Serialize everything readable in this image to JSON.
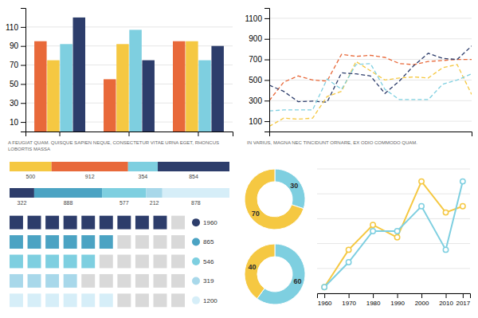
{
  "chart_data": [
    {
      "type": "bar",
      "subtitle": "A FEUGIAT QUAM. QUISQUE SAPIEN NEQUE, CONSECTETUR VITAE URNA EGET, RHONCUS\nLOBORTIS MASSA",
      "categories": [
        null,
        null,
        null
      ],
      "series": [
        {
          "color": "#E8693A",
          "values": [
            95,
            55,
            95
          ]
        },
        {
          "color": "#F5C842",
          "values": [
            75,
            92,
            95
          ]
        },
        {
          "color": "#7ECFE0",
          "values": [
            92,
            107,
            75
          ]
        },
        {
          "color": "#2D3D6B",
          "values": [
            120,
            75,
            90
          ]
        }
      ],
      "ylim": [
        0,
        130
      ],
      "yticks": [
        10,
        30,
        50,
        70,
        90,
        110
      ],
      "grid": true,
      "tick_labels": "y"
    },
    {
      "type": "line",
      "subtitle": "IN VARIUS, MAGNA NEC TINCIDUNT ORNARE, EX ODIO COMMODO QUAM.",
      "x": [
        0,
        1,
        2,
        3,
        4,
        5,
        6,
        7,
        8,
        9,
        10,
        11,
        12,
        13,
        14
      ],
      "series": [
        {
          "color": "#E8693A",
          "line_style": "dashed",
          "values": [
            300,
            480,
            540,
            500,
            490,
            750,
            730,
            740,
            720,
            660,
            650,
            680,
            690,
            700,
            700
          ]
        },
        {
          "color": "#2D3D6B",
          "line_style": "dashed",
          "values": [
            450,
            390,
            290,
            295,
            285,
            570,
            560,
            540,
            370,
            490,
            640,
            760,
            710,
            700,
            830
          ]
        },
        {
          "color": "#F5C842",
          "line_style": "dashed",
          "values": [
            50,
            130,
            120,
            130,
            340,
            390,
            680,
            590,
            500,
            520,
            530,
            520,
            620,
            650,
            360
          ]
        },
        {
          "color": "#7ECFE0",
          "line_style": "dashed",
          "values": [
            200,
            210,
            210,
            210,
            510,
            410,
            650,
            660,
            410,
            310,
            310,
            310,
            460,
            500,
            560
          ]
        }
      ],
      "xlim": [
        0,
        14
      ],
      "xticks": [],
      "ylim": [
        0,
        1200
      ],
      "yticks": [
        100,
        300,
        500,
        700,
        900,
        1100
      ],
      "grid": true,
      "tick_labels": "y"
    },
    {
      "type": "bar",
      "orientation": "horizontal",
      "stacked": true,
      "data_labels": true,
      "tick_labels": false,
      "series": [
        {
          "color": "#F5C842",
          "values": [
            500
          ]
        },
        {
          "color": "#E8693A",
          "values": [
            912
          ]
        },
        {
          "color": "#7ECFE0",
          "values": [
            354
          ]
        },
        {
          "color": "#2D3D6B",
          "values": [
            854
          ]
        }
      ],
      "xlim": [
        0,
        2620
      ]
    },
    {
      "type": "bar",
      "orientation": "horizontal",
      "stacked": true,
      "data_labels": true,
      "tick_labels": false,
      "series": [
        {
          "color": "#2D3D6B",
          "values": [
            322
          ]
        },
        {
          "color": "#4BA3C3",
          "values": [
            888
          ]
        },
        {
          "color": "#7ECFE0",
          "values": [
            577
          ]
        },
        {
          "color": "#A8D8EA",
          "values": [
            212
          ]
        },
        {
          "color": "#D6EEF8",
          "values": [
            878
          ]
        }
      ],
      "xlim": [
        0,
        2877
      ]
    },
    {
      "type": "waffle",
      "legend": "right",
      "xlim": [
        0,
        10
      ],
      "series": [
        {
          "name": "1960",
          "color": "#2D3D6B",
          "values": [
            9
          ]
        },
        {
          "name": "865",
          "color": "#4BA3C3",
          "values": [
            6
          ]
        },
        {
          "name": "546",
          "color": "#7ECFE0",
          "values": [
            5
          ]
        },
        {
          "name": "319",
          "color": "#A8D8EA",
          "values": [
            4
          ]
        },
        {
          "name": "1200",
          "color": "#D6EEF8",
          "values": [
            6
          ]
        }
      ]
    },
    {
      "type": "donut",
      "values": [
        30,
        70
      ],
      "colors": [
        "#7ECFE0",
        "#F5C842"
      ],
      "data_labels": true
    },
    {
      "type": "donut",
      "values": [
        60,
        40
      ],
      "colors": [
        "#7ECFE0",
        "#F5C842"
      ],
      "data_labels": true
    },
    {
      "type": "line",
      "marker": "circle",
      "x": [
        1960,
        1970,
        1980,
        1990,
        2000,
        2010,
        2017
      ],
      "series": [
        {
          "color": "#F5C842",
          "values": [
            5,
            35,
            55,
            45,
            90,
            65,
            70
          ]
        },
        {
          "color": "#7ECFE0",
          "values": [
            5,
            25,
            50,
            50,
            70,
            35,
            90
          ]
        }
      ],
      "xlim": [
        1957,
        2020
      ],
      "xticks": [
        1960,
        1970,
        1980,
        1990,
        2000,
        2010,
        2017
      ],
      "ylim": [
        0,
        100
      ],
      "yticks": [
        0,
        20,
        40,
        60,
        80,
        100
      ],
      "grid": true,
      "tick_labels": "x"
    }
  ]
}
